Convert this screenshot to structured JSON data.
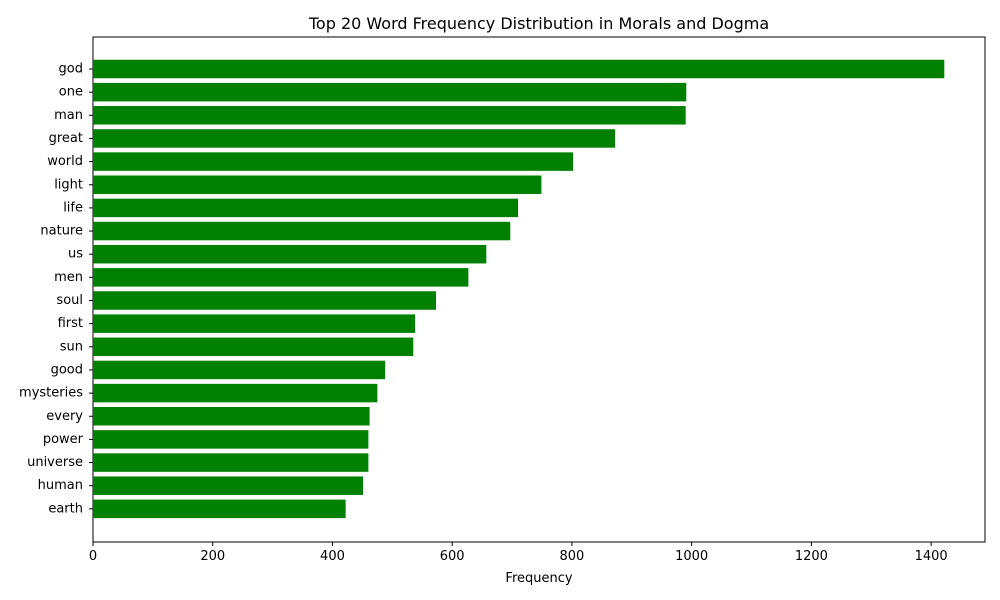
{
  "chart_data": {
    "type": "bar",
    "orientation": "horizontal",
    "title": "Top 20 Word Frequency Distribution in Morals and Dogma",
    "xlabel": "Frequency",
    "ylabel": "",
    "xlim": [
      0,
      1490
    ],
    "xticks": [
      0,
      200,
      400,
      600,
      800,
      1000,
      1200,
      1400
    ],
    "xtick_labels": [
      "0",
      "200",
      "400",
      "600",
      "800",
      "1000",
      "1200",
      "1400"
    ],
    "categories": [
      "god",
      "one",
      "man",
      "great",
      "world",
      "light",
      "life",
      "nature",
      "us",
      "men",
      "soul",
      "first",
      "sun",
      "good",
      "mysteries",
      "every",
      "power",
      "universe",
      "human",
      "earth"
    ],
    "values": [
      1422,
      991,
      990,
      872,
      802,
      749,
      710,
      697,
      657,
      627,
      573,
      538,
      535,
      488,
      475,
      462,
      460,
      460,
      451,
      422
    ],
    "bar_color": "#008000",
    "grid": false,
    "legend": "none"
  }
}
